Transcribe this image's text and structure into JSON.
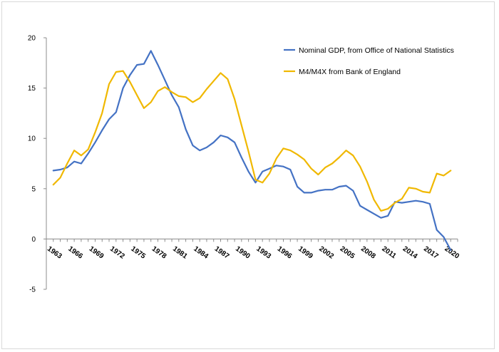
{
  "chart_data": {
    "type": "line",
    "title": "",
    "xlabel": "",
    "ylabel": "",
    "xlim": [
      1962,
      2021
    ],
    "ylim": [
      -5,
      20
    ],
    "y_ticks": [
      -5,
      0,
      5,
      10,
      15,
      20
    ],
    "x_ticks": [
      1963,
      1966,
      1969,
      1972,
      1975,
      1978,
      1981,
      1984,
      1987,
      1990,
      1993,
      1996,
      1999,
      2002,
      2005,
      2008,
      2011,
      2014,
      2017,
      2020
    ],
    "grid": false,
    "legend_position": "top-right",
    "series": [
      {
        "name": "Nominal GDP, from Office of National Statistics",
        "color": "#4472C4",
        "x": [
          1963,
          1964,
          1965,
          1966,
          1967,
          1968,
          1969,
          1970,
          1971,
          1972,
          1973,
          1974,
          1975,
          1976,
          1977,
          1978,
          1979,
          1980,
          1981,
          1982,
          1983,
          1984,
          1985,
          1986,
          1987,
          1988,
          1989,
          1990,
          1991,
          1992,
          1993,
          1994,
          1995,
          1996,
          1997,
          1998,
          1999,
          2000,
          2001,
          2002,
          2003,
          2004,
          2005,
          2006,
          2007,
          2008,
          2009,
          2010,
          2011,
          2012,
          2013,
          2014,
          2015,
          2016,
          2017,
          2018,
          2019,
          2020
        ],
        "values": [
          6.8,
          6.9,
          7.1,
          7.7,
          7.5,
          8.5,
          9.6,
          10.8,
          11.9,
          12.6,
          15.0,
          16.3,
          17.3,
          17.4,
          18.7,
          17.3,
          15.8,
          14.3,
          13.1,
          10.9,
          9.3,
          8.8,
          9.1,
          9.6,
          10.3,
          10.1,
          9.6,
          8.1,
          6.7,
          5.6,
          6.7,
          7.0,
          7.3,
          7.2,
          6.9,
          5.2,
          4.6,
          4.6,
          4.8,
          4.9,
          4.9,
          5.2,
          5.3,
          4.8,
          3.3,
          2.9,
          2.5,
          2.1,
          2.3,
          3.7,
          3.6,
          3.7,
          3.8,
          3.7,
          3.5,
          0.9,
          0.2,
          -1.1
        ]
      },
      {
        "name": "M4/M4X from Bank of England",
        "color": "#F0B800",
        "x": [
          1963,
          1964,
          1965,
          1966,
          1967,
          1968,
          1969,
          1970,
          1971,
          1972,
          1973,
          1974,
          1975,
          1976,
          1977,
          1978,
          1979,
          1980,
          1981,
          1982,
          1983,
          1984,
          1985,
          1986,
          1987,
          1988,
          1989,
          1990,
          1991,
          1992,
          1993,
          1994,
          1995,
          1996,
          1997,
          1998,
          1999,
          2000,
          2001,
          2002,
          2003,
          2004,
          2005,
          2006,
          2007,
          2008,
          2009,
          2010,
          2011,
          2012,
          2013,
          2014,
          2015,
          2016,
          2017,
          2018,
          2019,
          2020
        ],
        "values": [
          5.4,
          6.1,
          7.5,
          8.8,
          8.3,
          8.9,
          10.6,
          12.5,
          15.4,
          16.6,
          16.7,
          15.6,
          14.3,
          13.0,
          13.6,
          14.7,
          15.1,
          14.6,
          14.2,
          14.1,
          13.6,
          14.0,
          14.9,
          15.7,
          16.5,
          15.9,
          13.9,
          11.3,
          8.7,
          5.9,
          5.6,
          6.5,
          8.0,
          9.0,
          8.8,
          8.4,
          7.9,
          7.0,
          6.4,
          7.1,
          7.5,
          8.1,
          8.8,
          8.3,
          7.2,
          5.7,
          3.9,
          2.8,
          3.0,
          3.6,
          4.0,
          5.1,
          5.0,
          4.7,
          4.6,
          6.5,
          6.3,
          6.8
        ]
      }
    ]
  }
}
